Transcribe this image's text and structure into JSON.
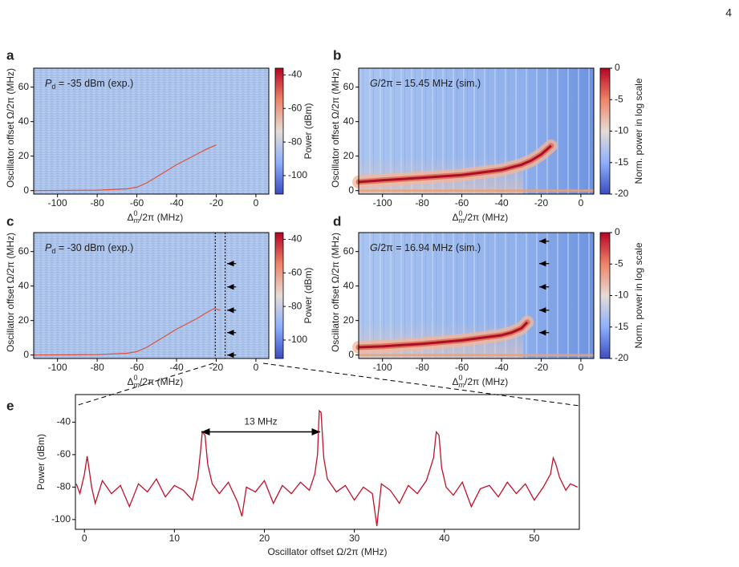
{
  "page_number": "4",
  "chart_data": [
    {
      "type": "heatmap",
      "panel": "a",
      "annotation": [
        {
          "text": "P",
          "font": "italic"
        },
        {
          "text": "d",
          "font": "sub"
        },
        {
          "text": " = -35 dBm (exp.)"
        }
      ],
      "xlabel": [
        {
          "text": "Δ"
        },
        {
          "text": "0",
          "font": "sup"
        },
        {
          "text": "m",
          "font": "sub-italic"
        },
        {
          "text": "/2π (MHz)"
        }
      ],
      "ylabel": "Oscillator offset Ω/2π (MHz)",
      "colorbar_label": "Power (dBm)",
      "xlim": [
        -112,
        6.5
      ],
      "ylim": [
        -2,
        71
      ],
      "xticks": [
        -100,
        -80,
        -60,
        -40,
        -20,
        0
      ],
      "yticks": [
        0,
        20,
        40,
        60
      ],
      "clim": [
        -111,
        -36
      ],
      "cticks": [
        -40,
        -60,
        -80,
        -100
      ],
      "background": "noise",
      "ridge": {
        "x": [
          -112,
          -80,
          -65,
          -60,
          -55,
          -50,
          -45,
          -40,
          -35,
          -30,
          -25,
          -20
        ],
        "y": [
          0,
          0.3,
          1,
          2,
          4.5,
          8,
          11.5,
          15,
          18,
          21,
          24,
          26.5
        ]
      }
    },
    {
      "type": "heatmap",
      "panel": "b",
      "annotation": [
        {
          "text": "G",
          "font": "italic"
        },
        {
          "text": "/2π = 15.45 MHz (sim.)"
        }
      ],
      "xlabel": [
        {
          "text": "Δ"
        },
        {
          "text": "0",
          "font": "sup"
        },
        {
          "text": "m",
          "font": "sub-italic"
        },
        {
          "text": "/2π (MHz)"
        }
      ],
      "ylabel": "Oscillator offset Ω/2π (MHz)",
      "colorbar_label": "Norm. power in log scale",
      "xlim": [
        -112,
        6.5
      ],
      "ylim": [
        -2,
        71
      ],
      "xticks": [
        -100,
        -80,
        -60,
        -40,
        -20,
        0
      ],
      "yticks": [
        0,
        20,
        40,
        60
      ],
      "clim": [
        -20,
        0
      ],
      "cticks": [
        0,
        -5,
        -10,
        -15,
        -20
      ],
      "background": "simulation",
      "ridge": {
        "x": [
          -112,
          -100,
          -80,
          -60,
          -40,
          -30,
          -25,
          -20,
          -15
        ],
        "y": [
          5,
          6,
          7.5,
          9,
          12,
          15,
          17.5,
          21,
          26
        ]
      }
    },
    {
      "type": "heatmap",
      "panel": "c",
      "annotation": [
        {
          "text": "P",
          "font": "italic"
        },
        {
          "text": "d",
          "font": "sub"
        },
        {
          "text": " = -30 dBm (exp.)"
        }
      ],
      "xlabel": [
        {
          "text": "Δ"
        },
        {
          "text": "0",
          "font": "sup"
        },
        {
          "text": "m",
          "font": "sub-italic"
        },
        {
          "text": "/2π (MHz)"
        }
      ],
      "ylabel": "Oscillator offset Ω/2π (MHz)",
      "colorbar_label": "Power (dBm)",
      "xlim": [
        -112,
        6.5
      ],
      "ylim": [
        -2,
        71
      ],
      "xticks": [
        -100,
        -80,
        -60,
        -40,
        -20,
        0
      ],
      "yticks": [
        0,
        20,
        40,
        60
      ],
      "clim": [
        -111,
        -36
      ],
      "cticks": [
        -40,
        -60,
        -80,
        -100
      ],
      "background": "noise",
      "ridge": {
        "x": [
          -112,
          -80,
          -65,
          -60,
          -55,
          -50,
          -45,
          -40,
          -35,
          -30,
          -25,
          -21,
          -18
        ],
        "y": [
          0,
          0.3,
          1,
          2,
          4.5,
          8,
          11.5,
          15,
          18,
          21,
          24.5,
          27,
          26
        ]
      },
      "markers_x": [
        -20.5,
        -15.5
      ],
      "arrows_y": [
        0,
        13,
        26,
        39.5,
        53
      ],
      "arrow_x": [
        -10,
        -14.5
      ]
    },
    {
      "type": "heatmap",
      "panel": "d",
      "annotation": [
        {
          "text": "G",
          "font": "italic"
        },
        {
          "text": "/2π = 16.94 MHz (sim.)"
        }
      ],
      "xlabel": [
        {
          "text": "Δ"
        },
        {
          "text": "0",
          "font": "sup"
        },
        {
          "text": "m",
          "font": "sub-italic"
        },
        {
          "text": "/2π (MHz)"
        }
      ],
      "ylabel": "Oscillator offset Ω/2π (MHz)",
      "colorbar_label": "Norm. power in log scale",
      "xlim": [
        -112,
        6.5
      ],
      "ylim": [
        -2,
        71
      ],
      "xticks": [
        -100,
        -80,
        -60,
        -40,
        -20,
        0
      ],
      "yticks": [
        0,
        20,
        40,
        60
      ],
      "clim": [
        -20,
        0
      ],
      "cticks": [
        0,
        -5,
        -10,
        -15,
        -20
      ],
      "background": "simulation",
      "ridge": {
        "x": [
          -112,
          -100,
          -80,
          -60,
          -40,
          -35,
          -30,
          -27
        ],
        "y": [
          4.5,
          5,
          6.5,
          8.5,
          11.5,
          13,
          15.5,
          19
        ]
      },
      "arrows_y": [
        13,
        26,
        39.5,
        53,
        66
      ],
      "arrow_x": [
        -16,
        -21
      ]
    },
    {
      "type": "line",
      "panel": "e",
      "xlabel": "Oscillator offset Ω/2π (MHz)",
      "ylabel": "Power (dBm)",
      "xlim": [
        -1,
        55
      ],
      "ylim": [
        -106,
        -23
      ],
      "xticks": [
        0,
        10,
        20,
        30,
        40,
        50
      ],
      "yticks": [
        -40,
        -60,
        -80,
        -100
      ],
      "color": "#c0102a",
      "x": [
        -0.9,
        -0.5,
        0,
        0.3,
        0.5,
        0.8,
        1.2,
        2,
        3,
        4,
        5,
        6,
        7,
        8,
        9,
        10,
        11,
        12,
        12.6,
        12.9,
        13.1,
        13.4,
        13.7,
        14.2,
        15,
        16,
        17,
        17.5,
        18,
        19,
        20,
        21,
        22,
        23,
        24,
        25,
        25.6,
        25.9,
        26.1,
        26.3,
        26.6,
        27,
        28,
        29,
        30,
        31,
        32,
        32.5,
        33,
        34,
        35,
        36,
        37,
        38,
        38.8,
        39.1,
        39.4,
        39.7,
        40.2,
        41,
        42,
        43,
        44,
        45,
        46,
        47,
        48,
        49,
        50,
        51,
        51.8,
        52.1,
        52.4,
        52.8,
        53.5,
        54,
        54.8
      ],
      "values": [
        -78,
        -84,
        -72,
        -61,
        -68,
        -80,
        -90,
        -76,
        -84,
        -79,
        -92,
        -78,
        -83,
        -75,
        -86,
        -79,
        -82,
        -88,
        -74,
        -58,
        -46,
        -48,
        -66,
        -78,
        -84,
        -77,
        -89,
        -98,
        -80,
        -83,
        -76,
        -90,
        -79,
        -84,
        -77,
        -82,
        -72,
        -60,
        -33,
        -34,
        -62,
        -75,
        -83,
        -79,
        -88,
        -80,
        -84,
        -104,
        -78,
        -82,
        -90,
        -79,
        -84,
        -76,
        -62,
        -46,
        -48,
        -68,
        -80,
        -85,
        -77,
        -92,
        -81,
        -79,
        -86,
        -77,
        -84,
        -78,
        -88,
        -80,
        -72,
        -62,
        -66,
        -74,
        -82,
        -78,
        -80
      ],
      "annotation": {
        "text": "13 MHz",
        "x0": 13,
        "x1": 26.2,
        "y": -46
      }
    }
  ]
}
